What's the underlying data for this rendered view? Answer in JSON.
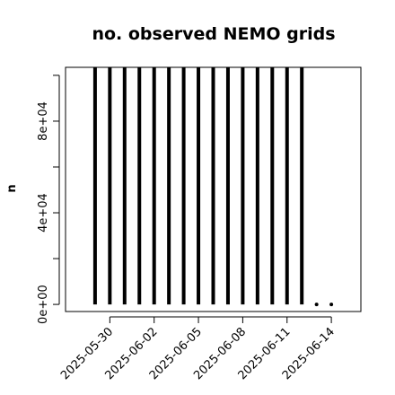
{
  "chart_data": {
    "type": "histlike",
    "title": "no. observed NEMO grids",
    "y_label": "n",
    "x": [
      "2025-05-29",
      "2025-05-30",
      "2025-05-31",
      "2025-06-01",
      "2025-06-02",
      "2025-06-03",
      "2025-06-04",
      "2025-06-05",
      "2025-06-06",
      "2025-06-07",
      "2025-06-08",
      "2025-06-09",
      "2025-06-10",
      "2025-06-11",
      "2025-06-12",
      "2025-06-13",
      "2025-06-14"
    ],
    "values": [
      103500,
      103500,
      103500,
      103500,
      103500,
      103500,
      103500,
      103500,
      103500,
      103500,
      103500,
      103500,
      103500,
      103500,
      103500,
      0,
      0
    ],
    "color": "#000000",
    "xlim": [
      "2025-05-27",
      "2025-06-16"
    ],
    "xticks": [
      "2025-05-30",
      "2025-06-02",
      "2025-06-05",
      "2025-06-08",
      "2025-06-11",
      "2025-06-14"
    ],
    "ylim": [
      -3100,
      103500
    ],
    "yticks": [
      {
        "value": 0,
        "label": "0e+00"
      },
      {
        "value": 20000,
        "label": null
      },
      {
        "value": 40000,
        "label": "4e+04"
      },
      {
        "value": 60000,
        "label": null
      },
      {
        "value": 80000,
        "label": "8e+04"
      },
      {
        "value": 100000,
        "label": null
      }
    ]
  }
}
